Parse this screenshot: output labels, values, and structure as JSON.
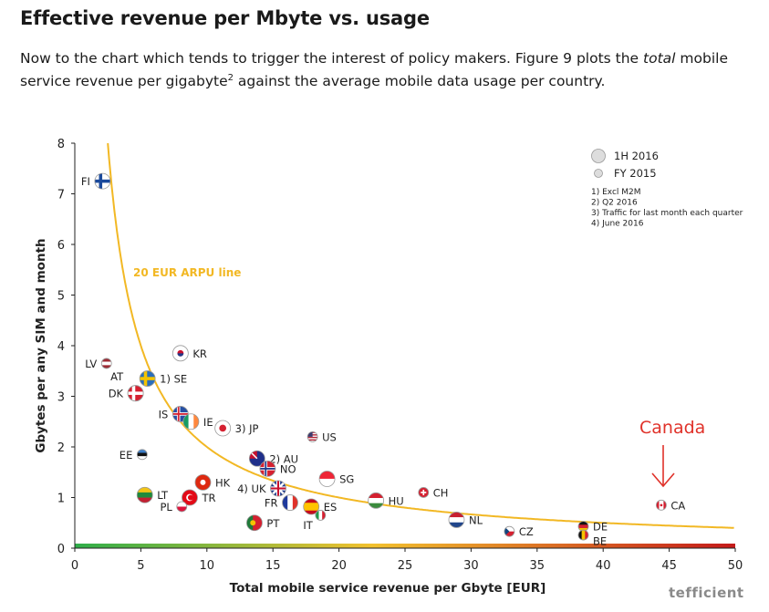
{
  "page": {
    "heading": "Effective revenue per Mbyte vs. usage",
    "intro": {
      "part1": "Now to the chart which tends to trigger the interest of policy makers. Figure 9 plots the ",
      "emph": "total",
      "part2": " mobile service revenue per gigabyte",
      "sup": "2",
      "part3": " against the average mobile data usage per country."
    }
  },
  "chart_data": {
    "type": "scatter",
    "xlabel": "Total mobile service revenue per Gbyte [EUR]",
    "ylabel": "Gbytes per any SIM and month",
    "xlim": [
      0,
      50
    ],
    "ylim": [
      0,
      8
    ],
    "x_ticks": [
      0,
      5,
      10,
      15,
      20,
      25,
      30,
      35,
      40,
      45,
      50
    ],
    "y_ticks": [
      0,
      1,
      2,
      3,
      4,
      5,
      6,
      7,
      8
    ],
    "grid": false,
    "legend_position": "top-right",
    "legend": [
      {
        "label": "1H 2016",
        "marker": "large"
      },
      {
        "label": "FY 2015",
        "marker": "small"
      }
    ],
    "notes": [
      "1) Excl M2M",
      "2) Q2 2016",
      "3) Traffic for last month each quarter",
      "4) June 2016"
    ],
    "curve": {
      "label": "20 EUR ARPU line",
      "arpu_eur": 20,
      "color": "#f2b824"
    },
    "annotation": {
      "text": "Canada",
      "color": "#e0322a"
    },
    "brand": "tefficient",
    "colors": {
      "axis": "#222222",
      "curve": "#f2b824",
      "accent": "#e0322a",
      "bar_start": "#2fae4a",
      "bar_mid": "#f2c12e",
      "bar_end": "#c41a1a"
    },
    "points": [
      {
        "label": "FI",
        "x": 2.1,
        "y": 7.25,
        "size": "large",
        "flag": "flag-finland"
      },
      {
        "label": "LV",
        "x": 2.4,
        "y": 3.65,
        "size": "small",
        "flag": "flag-latvia"
      },
      {
        "label": "AT",
        "x": 4.6,
        "y": 3.06,
        "size": "large",
        "flag": "flag-austria"
      },
      {
        "label": "DK",
        "x": 4.6,
        "y": 3.06,
        "size": "large",
        "flag": "flag-denmark"
      },
      {
        "label": "1) SE",
        "x": 5.5,
        "y": 3.35,
        "size": "large",
        "flag": "flag-sweden"
      },
      {
        "label": "EE",
        "x": 5.1,
        "y": 1.85,
        "size": "small",
        "flag": "flag-estonia"
      },
      {
        "label": "LT",
        "x": 5.3,
        "y": 1.05,
        "size": "large",
        "flag": "flag-lithuania"
      },
      {
        "label": "KR",
        "x": 8.0,
        "y": 3.85,
        "size": "large",
        "flag": "flag-korea"
      },
      {
        "label": "IS",
        "x": 8.0,
        "y": 2.65,
        "size": "large",
        "flag": "flag-iceland"
      },
      {
        "label": "IE",
        "x": 8.8,
        "y": 2.5,
        "size": "large",
        "flag": "flag-ireland"
      },
      {
        "label": "HK",
        "x": 9.7,
        "y": 1.3,
        "size": "large",
        "flag": "flag-hong-kong"
      },
      {
        "label": "TR",
        "x": 8.7,
        "y": 1.0,
        "size": "large",
        "flag": "flag-turkey"
      },
      {
        "label": "PL",
        "x": 8.1,
        "y": 0.82,
        "size": "small",
        "flag": "flag-poland"
      },
      {
        "label": "3) JP",
        "x": 11.2,
        "y": 2.37,
        "size": "large",
        "flag": "flag-japan"
      },
      {
        "label": "2) AU",
        "x": 13.8,
        "y": 1.77,
        "size": "large",
        "flag": "flag-australia"
      },
      {
        "label": "NO",
        "x": 14.6,
        "y": 1.57,
        "size": "large",
        "flag": "flag-norway"
      },
      {
        "label": "4) UK",
        "x": 15.4,
        "y": 1.18,
        "size": "large",
        "flag": "flag-uk"
      },
      {
        "label": "FR",
        "x": 16.3,
        "y": 0.9,
        "size": "large",
        "flag": "flag-france"
      },
      {
        "label": "PT",
        "x": 13.6,
        "y": 0.5,
        "size": "large",
        "flag": "flag-portugal"
      },
      {
        "label": "US",
        "x": 18.0,
        "y": 2.2,
        "size": "small",
        "flag": "flag-usa"
      },
      {
        "label": "SG",
        "x": 19.1,
        "y": 1.37,
        "size": "large",
        "flag": "flag-singapore"
      },
      {
        "label": "ES",
        "x": 17.9,
        "y": 0.82,
        "size": "large",
        "flag": "flag-spain"
      },
      {
        "label": "IT",
        "x": 18.6,
        "y": 0.65,
        "size": "small",
        "flag": "flag-italy"
      },
      {
        "label": "HU",
        "x": 22.8,
        "y": 0.94,
        "size": "large",
        "flag": "flag-hungary"
      },
      {
        "label": "CH",
        "x": 26.4,
        "y": 1.1,
        "size": "small",
        "flag": "flag-switzerland"
      },
      {
        "label": "NL",
        "x": 28.9,
        "y": 0.56,
        "size": "large",
        "flag": "flag-netherlands"
      },
      {
        "label": "CZ",
        "x": 32.9,
        "y": 0.33,
        "size": "small",
        "flag": "flag-czech"
      },
      {
        "label": "DE",
        "x": 38.5,
        "y": 0.43,
        "size": "small",
        "flag": "flag-germany"
      },
      {
        "label": "BE",
        "x": 38.5,
        "y": 0.26,
        "size": "small",
        "flag": "flag-belgium"
      },
      {
        "label": "CA",
        "x": 44.4,
        "y": 0.85,
        "size": "small",
        "flag": "flag-canada"
      }
    ]
  }
}
